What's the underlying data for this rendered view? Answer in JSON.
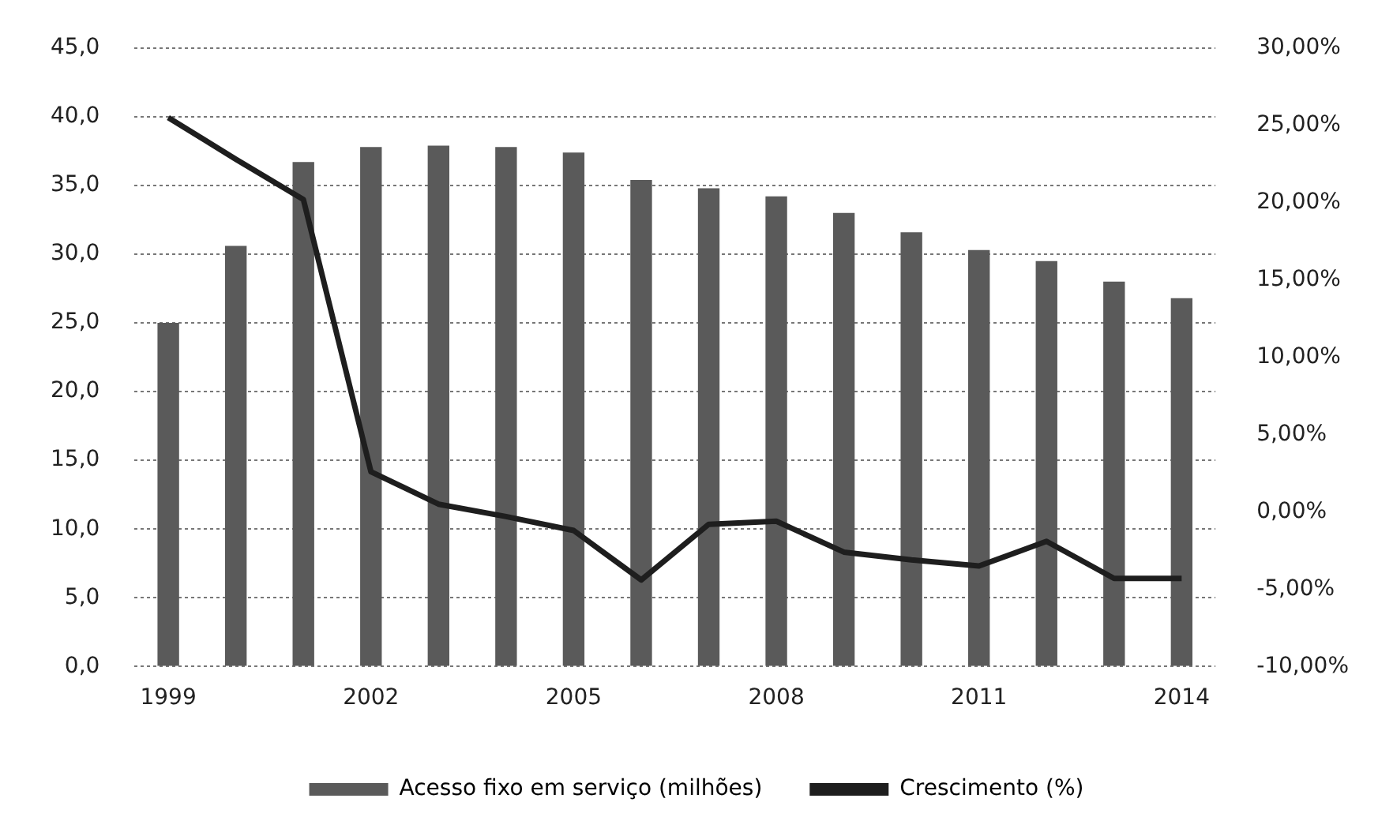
{
  "chart_data": {
    "type": "bar",
    "categories": [
      "1999",
      null,
      null,
      "2002",
      null,
      null,
      "2005",
      null,
      null,
      "2008",
      null,
      null,
      "2011",
      null,
      null,
      "2014"
    ],
    "series": [
      {
        "name": "Acesso fixo em serviço (milhões)",
        "color": "#5a5a5a",
        "values": [
          25.0,
          30.6,
          36.7,
          37.8,
          37.9,
          37.8,
          37.4,
          35.4,
          34.8,
          34.2,
          33.0,
          31.6,
          30.3,
          29.5,
          28.0,
          26.8
        ]
      },
      {
        "name": "Crescimento (%)",
        "type": "line",
        "axis": "y2",
        "color": "#1e1e1e",
        "values": [
          25.5,
          22.8,
          20.2,
          2.6,
          0.5,
          -0.3,
          -1.2,
          -4.4,
          -0.8,
          -0.6,
          -2.6,
          -3.1,
          -3.5,
          -1.9,
          -4.3,
          -4.3
        ]
      }
    ],
    "ylim": [
      0,
      45
    ],
    "yticks": [
      {
        "value": 0,
        "label": "0,0"
      },
      {
        "value": 5,
        "label": "5,0"
      },
      {
        "value": 10,
        "label": "10,0"
      },
      {
        "value": 15,
        "label": "15,0"
      },
      {
        "value": 20,
        "label": "20,0"
      },
      {
        "value": 25,
        "label": "25,0"
      },
      {
        "value": 30,
        "label": "30,0"
      },
      {
        "value": 35,
        "label": "35,0"
      },
      {
        "value": 40,
        "label": "40,0"
      },
      {
        "value": 45,
        "label": "45,0"
      }
    ],
    "y2lim": [
      -10,
      30
    ],
    "y2ticks": [
      {
        "value": -10,
        "label": "-10,00%"
      },
      {
        "value": -5,
        "label": "-5,00%"
      },
      {
        "value": 0,
        "label": "0,00%"
      },
      {
        "value": 5,
        "label": "5,00%"
      },
      {
        "value": 10,
        "label": "10,00%"
      },
      {
        "value": 15,
        "label": "15,00%"
      },
      {
        "value": 20,
        "label": "20,00%"
      },
      {
        "value": 25,
        "label": "25,00%"
      },
      {
        "value": 30,
        "label": "30,00%"
      }
    ],
    "grid": "y",
    "legend": "bottom",
    "marker": "none",
    "line_style": "solid"
  }
}
